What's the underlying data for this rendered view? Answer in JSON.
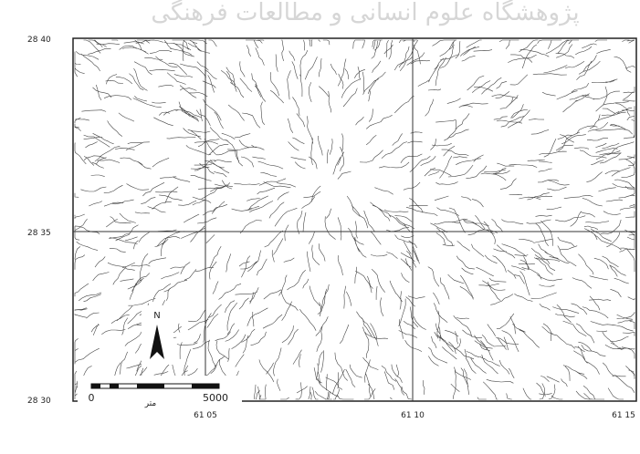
{
  "watermark": "پژوهشگاه علوم انسانی و مطالعات فرهنگی",
  "map": {
    "lat_labels": [
      "28 40",
      "28 35",
      "28 30"
    ],
    "lon_labels": [
      "61 05",
      "61 10",
      "61 15"
    ],
    "north": "N",
    "scale_bar": {
      "start": "0",
      "end": "5000",
      "unit": "متر"
    }
  }
}
